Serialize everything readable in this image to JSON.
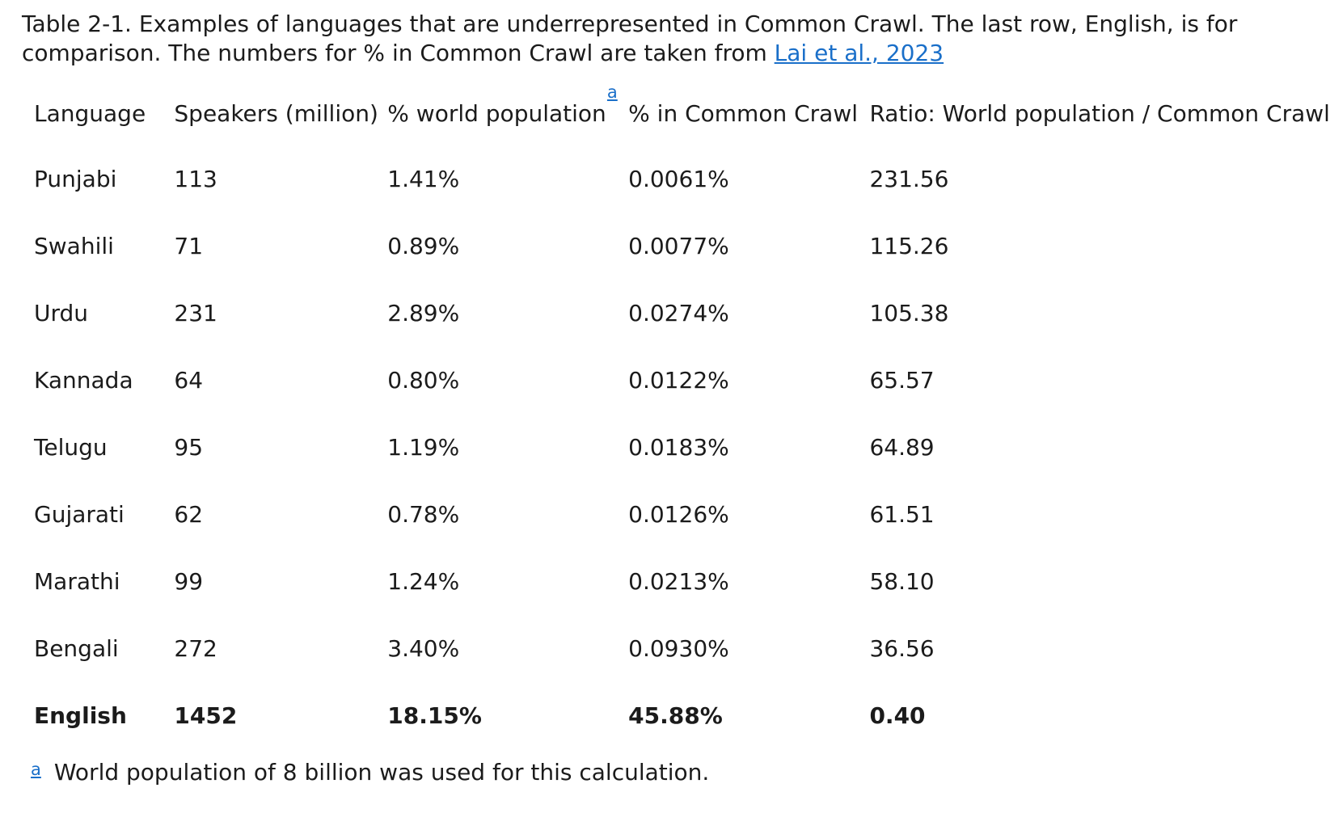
{
  "caption": {
    "text": "Table 2-1. Examples of languages that are underrepresented in Common Crawl. The last row, English, is for comparison. The numbers for % in Common Crawl are taken from ",
    "link": "Lai et al., 2023"
  },
  "table": {
    "headers": [
      "Language",
      "Speakers (million)",
      "% world population",
      "% in Common Crawl",
      "Ratio: World population / Common Crawl"
    ],
    "header_sup": "a",
    "rows": [
      [
        "Punjabi",
        "113",
        "1.41%",
        "0.0061%",
        "231.56"
      ],
      [
        "Swahili",
        "71",
        "0.89%",
        "0.0077%",
        "115.26"
      ],
      [
        "Urdu",
        "231",
        "2.89%",
        "0.0274%",
        "105.38"
      ],
      [
        "Kannada",
        "64",
        "0.80%",
        "0.0122%",
        "65.57"
      ],
      [
        "Telugu",
        "95",
        "1.19%",
        "0.0183%",
        "64.89"
      ],
      [
        "Gujarati",
        "62",
        "0.78%",
        "0.0126%",
        "61.51"
      ],
      [
        "Marathi",
        "99",
        "1.24%",
        "0.0213%",
        "58.10"
      ],
      [
        "Bengali",
        "272",
        "3.40%",
        "0.0930%",
        "36.56"
      ],
      [
        "English",
        "1452",
        "18.15%",
        "45.88%",
        "0.40"
      ]
    ]
  },
  "footnote": {
    "mark": "a",
    "text": "World population of 8 billion was used for this calculation."
  },
  "colors": {
    "text": "#1b1b1b",
    "link": "#1a6fc9",
    "background": "#ffffff"
  }
}
